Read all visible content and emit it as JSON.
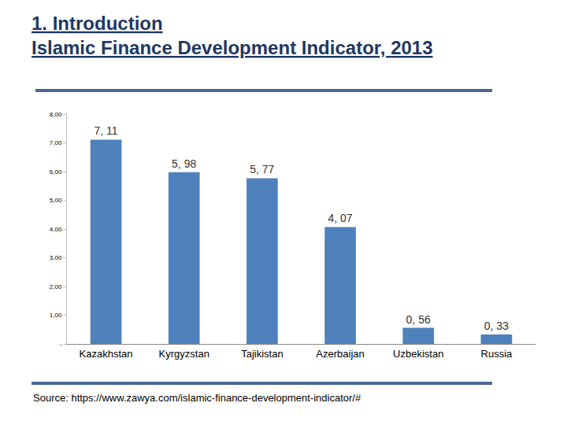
{
  "chart_data": {
    "type": "bar",
    "title": "1. Introduction",
    "subtitle": "Islamic Finance Development Indicator, 2013",
    "categories": [
      "Kazakhstan",
      "Kyrgyzstan",
      "Tajikistan",
      "Azerbaijan",
      "Uzbekistan",
      "Russia"
    ],
    "values": [
      7.11,
      5.98,
      5.77,
      4.07,
      0.56,
      0.33
    ],
    "value_labels": [
      "7, 11",
      "5, 98",
      "5, 77",
      "4, 07",
      "0, 56",
      "0, 33"
    ],
    "color": "#4f81bd",
    "ylim": [
      0,
      8
    ],
    "yticks": [
      {
        "value": 0,
        "label": "-"
      },
      {
        "value": 1,
        "label": "1,00"
      },
      {
        "value": 2,
        "label": "2,00"
      },
      {
        "value": 3,
        "label": "3,00"
      },
      {
        "value": 4,
        "label": "4,00"
      },
      {
        "value": 5,
        "label": "5,00"
      },
      {
        "value": 6,
        "label": "6,00"
      },
      {
        "value": 7,
        "label": "7,00"
      },
      {
        "value": 8,
        "label": "8,00"
      }
    ],
    "grid": false,
    "data_labels": true,
    "annotations": [
      "Source: https://www.zawya.com/islamic-finance-development-indicator/#"
    ]
  }
}
